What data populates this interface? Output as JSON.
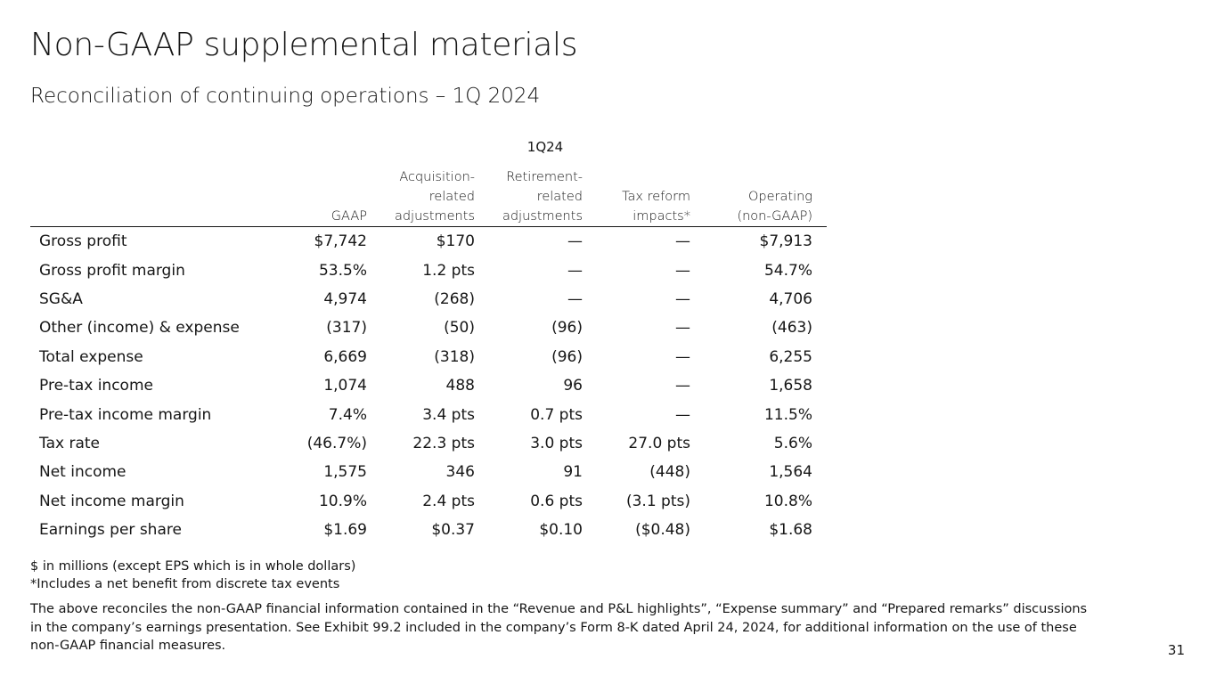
{
  "title": "Non-GAAP supplemental materials",
  "subtitle": "Reconciliation of continuing operations – 1Q 2024",
  "period": "1Q24",
  "columns": [
    "",
    "GAAP",
    "Acquisition-\nrelated\nadjustments",
    "Retirement-\nrelated\nadjustments",
    "Tax reform\nimpacts*",
    "Operating\n(non-GAAP)"
  ],
  "rows": [
    {
      "label": "Gross profit",
      "gaap": "$7,742",
      "acquisition": "$170",
      "retirement": "—",
      "tax_reform": "—",
      "operating": "$7,913"
    },
    {
      "label": "Gross profit margin",
      "gaap": "53.5%",
      "acquisition": "1.2 pts",
      "retirement": "—",
      "tax_reform": "—",
      "operating": "54.7%"
    },
    {
      "label": "SG&A",
      "gaap": "4,974",
      "acquisition": "(268)",
      "retirement": "—",
      "tax_reform": "—",
      "operating": "4,706"
    },
    {
      "label": "Other (income) & expense",
      "gaap": "(317)",
      "acquisition": "(50)",
      "retirement": "(96)",
      "tax_reform": "—",
      "operating": "(463)"
    },
    {
      "label": "Total expense",
      "gaap": "6,669",
      "acquisition": "(318)",
      "retirement": "(96)",
      "tax_reform": "—",
      "operating": "6,255"
    },
    {
      "label": "Pre-tax income",
      "gaap": "1,074",
      "acquisition": "488",
      "retirement": "96",
      "tax_reform": "—",
      "operating": "1,658"
    },
    {
      "label": "Pre-tax income margin",
      "gaap": "7.4%",
      "acquisition": "3.4 pts",
      "retirement": "0.7 pts",
      "tax_reform": "—",
      "operating": "11.5%"
    },
    {
      "label": "Tax rate",
      "gaap": "(46.7%)",
      "acquisition": "22.3 pts",
      "retirement": "3.0 pts",
      "tax_reform": "27.0 pts",
      "operating": "5.6%"
    },
    {
      "label": "Net income",
      "gaap": "1,575",
      "acquisition": "346",
      "retirement": "91",
      "tax_reform": "(448)",
      "operating": "1,564"
    },
    {
      "label": "Net income margin",
      "gaap": "10.9%",
      "acquisition": "2.4 pts",
      "retirement": "0.6 pts",
      "tax_reform": "(3.1 pts)",
      "operating": "10.8%"
    },
    {
      "label": "Earnings per share",
      "gaap": "$1.69",
      "acquisition": "$0.37",
      "retirement": "$0.10",
      "tax_reform": "($0.48)",
      "operating": "$1.68"
    }
  ],
  "notes": [
    "$ in millions (except EPS which is in whole dollars)",
    "*Includes a net benefit from discrete tax events"
  ],
  "disclaimer": "The above reconciles the non-GAAP financial information contained in the “Revenue and P&L highlights”, “Expense summary” and “Prepared remarks” discussions in the company’s earnings presentation. See Exhibit 99.2 included in the company’s Form 8-K dated April 24, 2024, for additional information on the use of these non-GAAP financial measures.",
  "page_number": "31"
}
